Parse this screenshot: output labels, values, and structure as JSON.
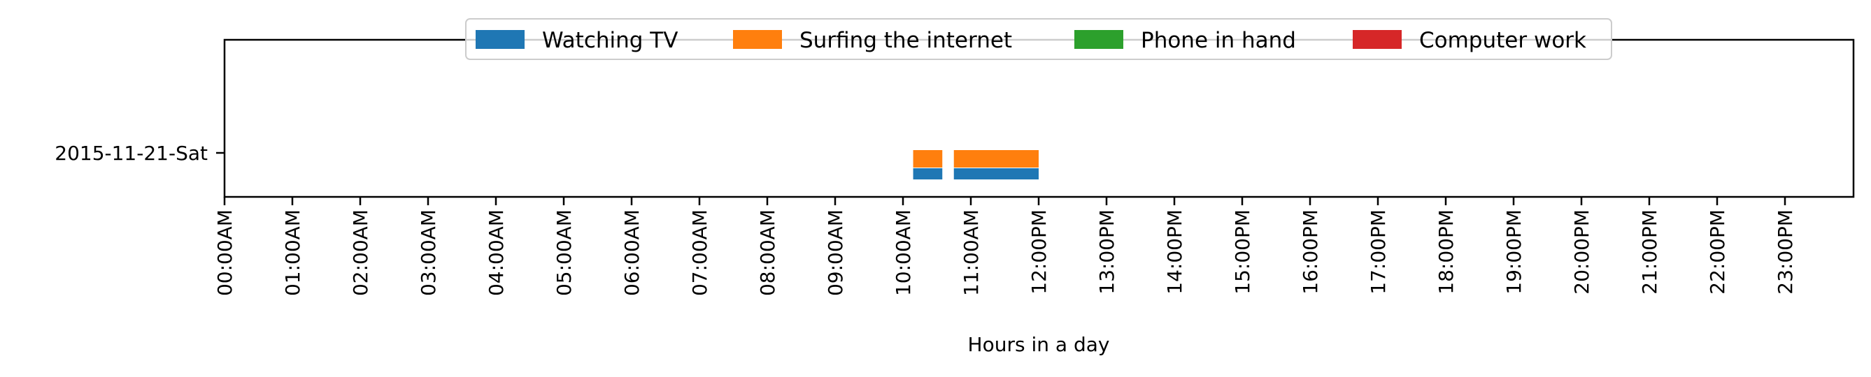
{
  "chart_data": {
    "type": "bar",
    "orientation": "horizontal-timeline",
    "title": "",
    "xlabel": "Hours in a day",
    "ylabel": "",
    "xlim": [
      0,
      24
    ],
    "x_ticks": [
      "00:00AM",
      "01:00AM",
      "02:00AM",
      "03:00AM",
      "04:00AM",
      "05:00AM",
      "06:00AM",
      "07:00AM",
      "08:00AM",
      "09:00AM",
      "10:00AM",
      "11:00AM",
      "12:00PM",
      "13:00PM",
      "14:00PM",
      "15:00PM",
      "16:00PM",
      "17:00PM",
      "18:00PM",
      "19:00PM",
      "20:00PM",
      "21:00PM",
      "22:00PM",
      "23:00PM"
    ],
    "categories": [
      "2015-11-21-Sat"
    ],
    "legend_position": "top-center",
    "grid": false,
    "series": [
      {
        "name": "Watching TV",
        "color": "#1f77b4",
        "lane": "lower",
        "intervals": [
          [
            10.15,
            10.58
          ],
          [
            10.75,
            12.0
          ]
        ]
      },
      {
        "name": "Surfing the internet",
        "color": "#ff7f0e",
        "lane": "upper",
        "intervals": [
          [
            10.15,
            10.58
          ],
          [
            10.75,
            12.0
          ]
        ]
      },
      {
        "name": "Phone in hand",
        "color": "#2ca02c",
        "lane": "none",
        "intervals": []
      },
      {
        "name": "Computer work",
        "color": "#d62728",
        "lane": "none",
        "intervals": []
      }
    ]
  }
}
